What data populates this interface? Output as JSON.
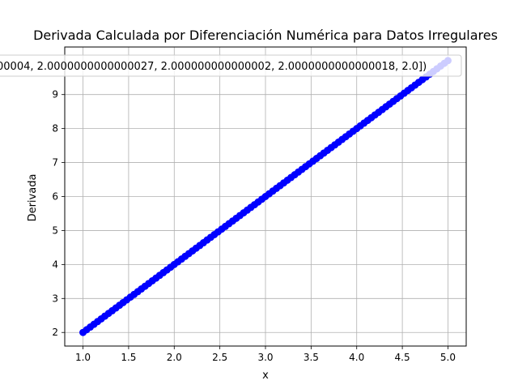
{
  "chart_data": {
    "type": "scatter",
    "title": "Derivada Calculada por Diferenciación Numérica para Datos Irregulares",
    "xlabel": "x",
    "ylabel": "Derivada",
    "xlim": [
      0.8,
      5.2
    ],
    "ylim": [
      1.6,
      10.4
    ],
    "xticks": [
      "1.0",
      "1.5",
      "2.0",
      "2.5",
      "3.0",
      "3.5",
      "4.0",
      "4.5",
      "5.0"
    ],
    "yticks": [
      "2",
      "3",
      "4",
      "5",
      "6",
      "7",
      "8",
      "9"
    ],
    "grid": true,
    "legend_position": "top-right",
    "series": [
      {
        "name": "00004, 2.0000000000000027, 2.000000000000002, 2.0000000000000018, 2.0])",
        "color": "#0000ff",
        "marker": "circle",
        "line": "solid",
        "x_start": 1.0,
        "x_end": 5.0,
        "point_count": 101,
        "relation": "y = 2x"
      }
    ]
  }
}
